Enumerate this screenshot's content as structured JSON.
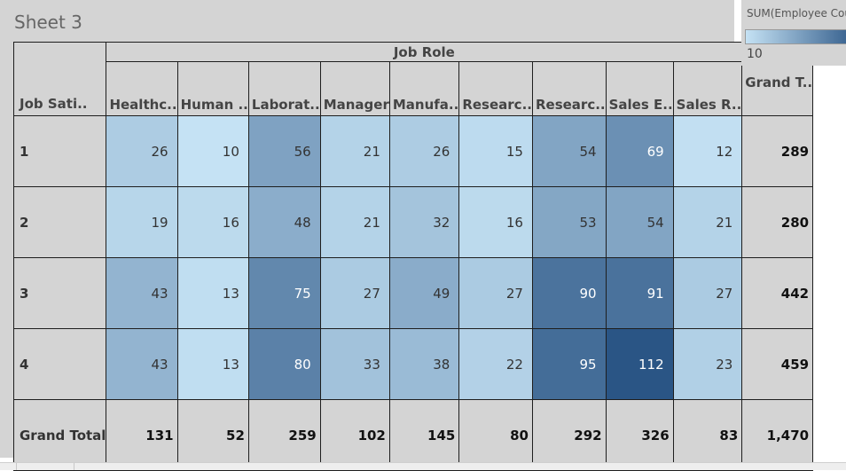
{
  "sheet": {
    "title": "Sheet 3"
  },
  "legend": {
    "title": "SUM(Employee Count)",
    "min_label": "10",
    "color_low": "#c5e2f4",
    "color_high": "#2a5585"
  },
  "chart_data": {
    "type": "heatmap",
    "row_dimension": "Job Sati..",
    "column_group": "Job Role",
    "columns": [
      "Healthc..",
      "Human ..",
      "Laborat..",
      "Manager",
      "Manufa..",
      "Researc..",
      "Researc..",
      "Sales E..",
      "Sales R.."
    ],
    "grand_total_column_label": "Grand T..",
    "grand_total_row_label": "Grand Total",
    "rows": [
      {
        "label": "1",
        "values": [
          26,
          10,
          56,
          21,
          26,
          15,
          54,
          69,
          12
        ],
        "total": "289"
      },
      {
        "label": "2",
        "values": [
          19,
          16,
          48,
          21,
          32,
          16,
          53,
          54,
          21
        ],
        "total": "280"
      },
      {
        "label": "3",
        "values": [
          43,
          13,
          75,
          27,
          49,
          27,
          90,
          91,
          27
        ],
        "total": "442"
      },
      {
        "label": "4",
        "values": [
          43,
          13,
          80,
          33,
          38,
          22,
          95,
          112,
          23
        ],
        "total": "459"
      }
    ],
    "column_totals": [
      "131",
      "52",
      "259",
      "102",
      "145",
      "80",
      "292",
      "326",
      "83"
    ],
    "grand_total": "1,470",
    "color_range": [
      10,
      112
    ]
  }
}
